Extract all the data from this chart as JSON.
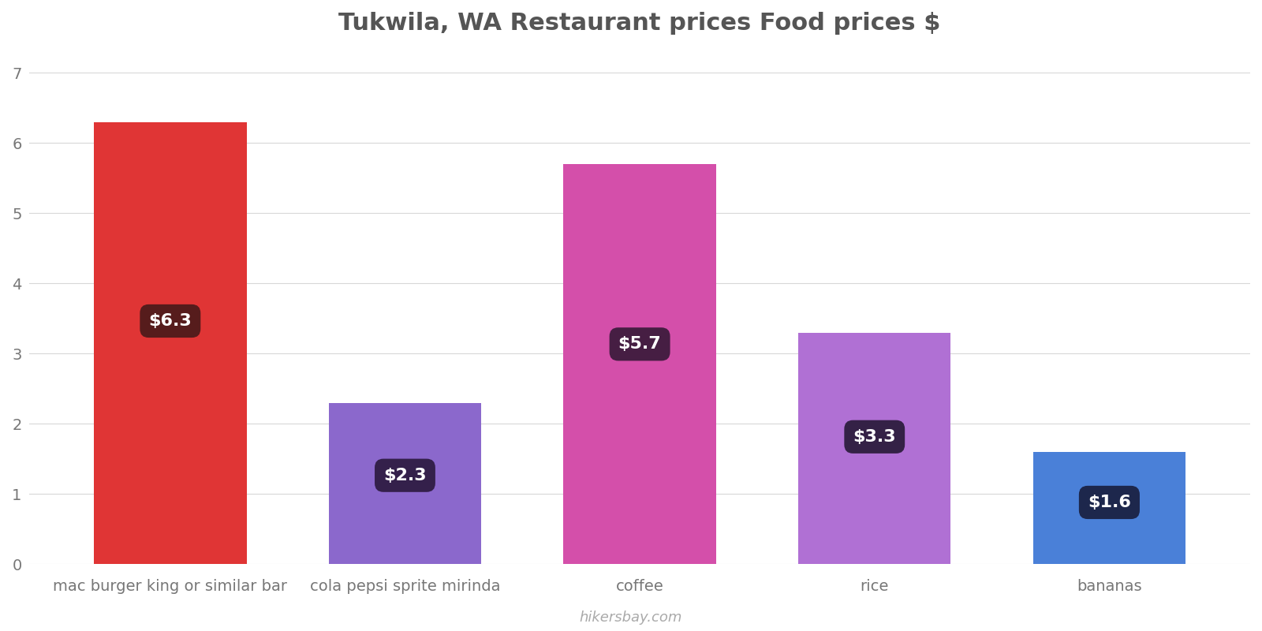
{
  "title": "Tukwila, WA Restaurant prices Food prices $",
  "categories": [
    "mac burger king or similar bar",
    "cola pepsi sprite mirinda",
    "coffee",
    "rice",
    "bananas"
  ],
  "values": [
    6.3,
    2.3,
    5.7,
    3.3,
    1.6
  ],
  "bar_colors": [
    "#e03535",
    "#8b68cc",
    "#d44faa",
    "#b070d4",
    "#4a80d8"
  ],
  "label_texts": [
    "$6.3",
    "$2.3",
    "$5.7",
    "$3.3",
    "$1.6"
  ],
  "label_bg_colors": [
    "#4a1a1a",
    "#2d1a40",
    "#3a1a3a",
    "#2a1a3a",
    "#1a2040"
  ],
  "label_text_color": "#ffffff",
  "ylabel_ticks": [
    0,
    1,
    2,
    3,
    4,
    5,
    6,
    7
  ],
  "ylim": [
    0,
    7.3
  ],
  "background_color": "#ffffff",
  "grid_color": "#d8d8d8",
  "title_fontsize": 22,
  "tick_fontsize": 14,
  "label_fontsize": 16,
  "watermark": "hikersbay.com",
  "watermark_color": "#aaaaaa",
  "bar_width": 0.65
}
